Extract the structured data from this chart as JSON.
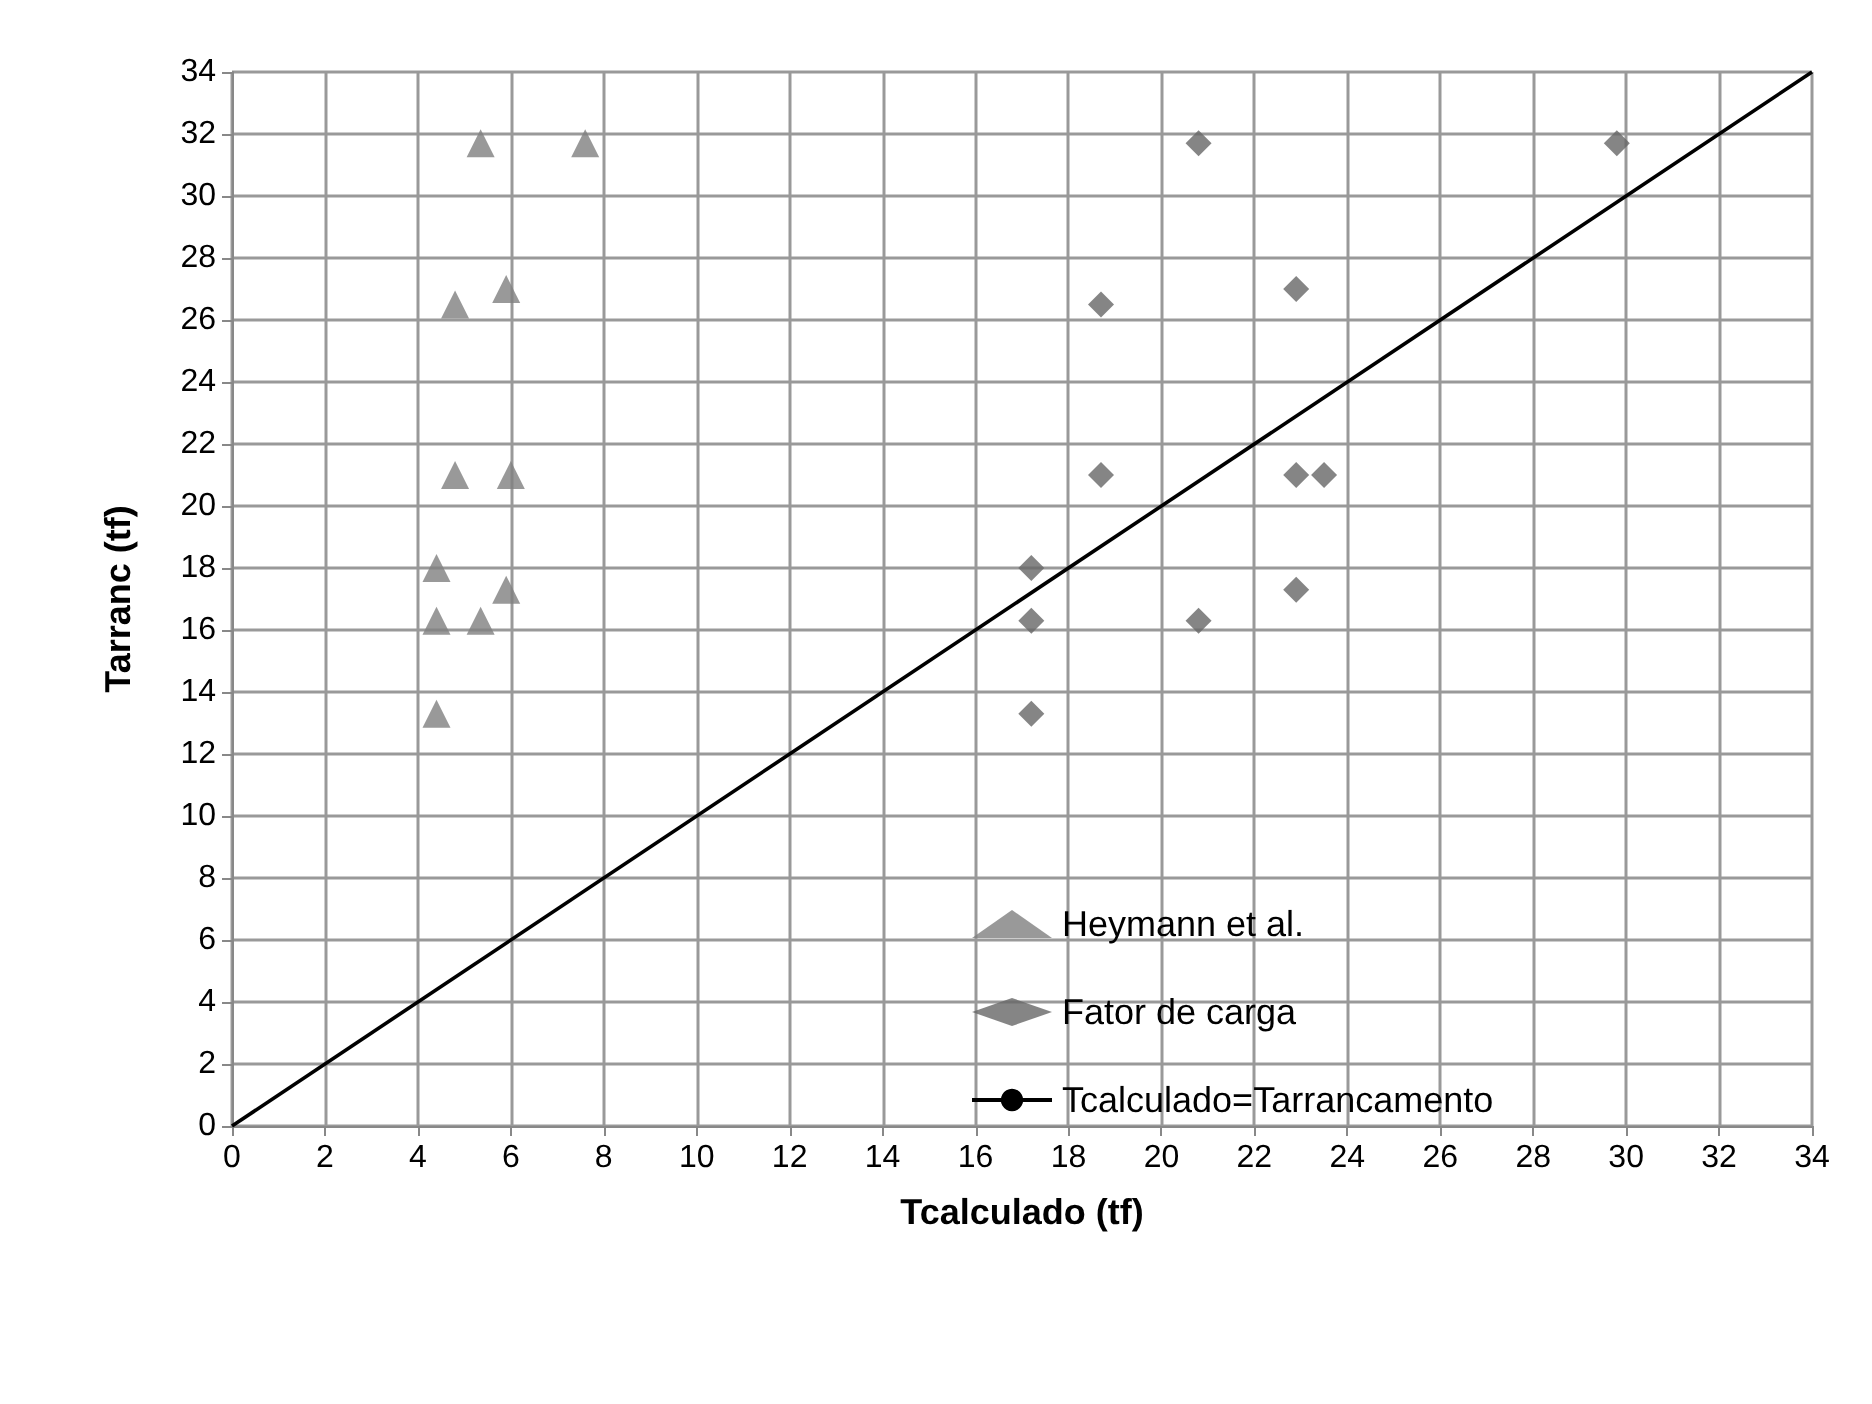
{
  "chart_data": {
    "type": "scatter",
    "xlabel": "Tcalculado (tf)",
    "ylabel": "Tarranc (tf)",
    "xlim": [
      0,
      34
    ],
    "xticks": [
      0,
      2,
      4,
      6,
      8,
      10,
      12,
      14,
      16,
      18,
      20,
      22,
      24,
      26,
      28,
      30,
      32,
      34
    ],
    "ylim": [
      0,
      34
    ],
    "yticks": [
      0,
      2,
      4,
      6,
      8,
      10,
      12,
      14,
      16,
      18,
      20,
      22,
      24,
      26,
      28,
      30,
      32,
      34
    ],
    "grid": true,
    "legend": "bottom right",
    "series": [
      {
        "name": "Heymann et al.",
        "color": "#808080",
        "marker": "triangle",
        "x": [
          5.35,
          7.6,
          4.8,
          5.9,
          4.8,
          6.0,
          4.4,
          4.4,
          5.35,
          5.9,
          4.4
        ],
        "values": [
          31.7,
          31.7,
          26.5,
          27.0,
          21.0,
          21.0,
          18.0,
          16.3,
          16.3,
          17.3,
          13.3
        ]
      },
      {
        "name": "Fator de carga",
        "color": "#666666",
        "marker": "diamond",
        "x": [
          20.8,
          29.8,
          18.7,
          22.9,
          18.7,
          22.9,
          23.5,
          17.2,
          17.2,
          20.8,
          22.9,
          17.2
        ],
        "values": [
          31.7,
          31.7,
          26.5,
          27.0,
          21.0,
          21.0,
          21.0,
          18.0,
          16.3,
          16.3,
          17.3,
          13.3
        ]
      },
      {
        "name": "Tcalculado=Tarrancamento",
        "type": "line",
        "color": "#000000",
        "marker": "none",
        "line_style": "solid",
        "x": [
          0,
          34
        ],
        "values": [
          0,
          34
        ]
      }
    ]
  }
}
